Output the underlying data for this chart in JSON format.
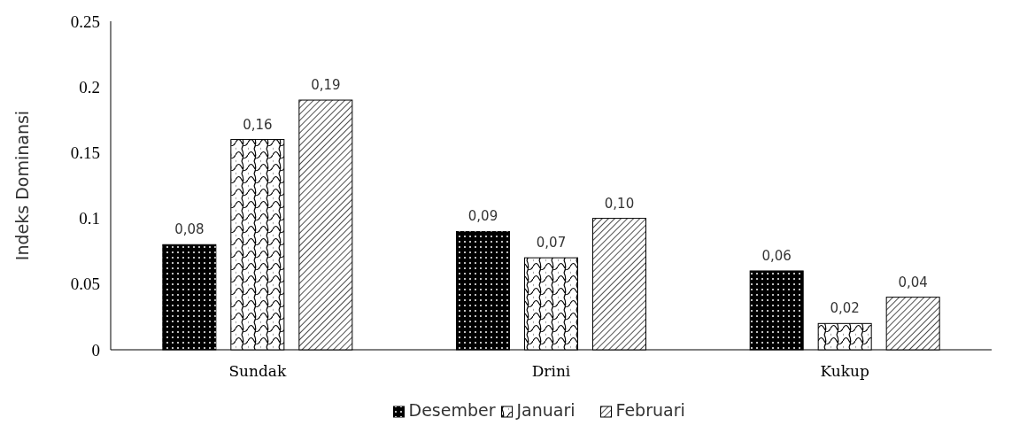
{
  "chart_data": {
    "type": "bar",
    "ylabel": "Indeks Dominansi",
    "categories": [
      "Sundak",
      "Drini",
      "Kukup"
    ],
    "series": [
      {
        "name": "Desember",
        "color": "#000000",
        "values": [
          0.08,
          0.09,
          0.06
        ],
        "value_labels": [
          "0,08",
          "0,09",
          "0,06"
        ]
      },
      {
        "name": "Januari",
        "color": "#ffffff",
        "values": [
          0.16,
          0.07,
          0.02
        ],
        "value_labels": [
          "0,16",
          "0,07",
          "0,02"
        ]
      },
      {
        "name": "Februari",
        "color": "#ffffff",
        "values": [
          0.19,
          0.1,
          0.04
        ],
        "value_labels": [
          "0,19",
          "0,10",
          "0,04"
        ]
      }
    ],
    "ylim": [
      0,
      0.25
    ],
    "yticks": [
      {
        "value": 0,
        "label": "0"
      },
      {
        "value": 0.05,
        "label": "0.05"
      },
      {
        "value": 0.1,
        "label": "0.1"
      },
      {
        "value": 0.15,
        "label": "0.15"
      },
      {
        "value": 0.2,
        "label": "0.2"
      },
      {
        "value": 0.25,
        "label": "0.25"
      }
    ],
    "grid": false,
    "legend": "bottom"
  }
}
